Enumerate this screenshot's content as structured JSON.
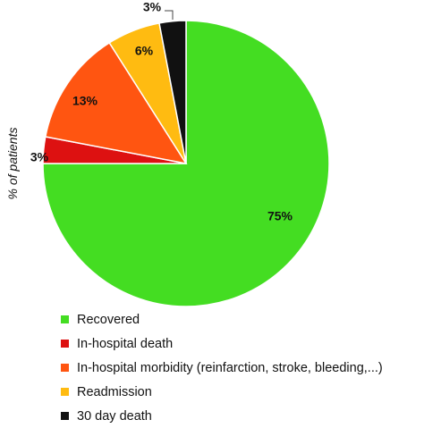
{
  "chart_data": {
    "type": "pie",
    "ylabel": "% of patients",
    "slices": [
      {
        "label": "Recovered",
        "value": 75,
        "display": "75%",
        "color": "#44dd22"
      },
      {
        "label": "In-hospital death",
        "value": 3,
        "display": "3%",
        "color": "#dd1111"
      },
      {
        "label": "In-hospital morbidity (reinfarction, stroke, bleeding,...)",
        "value": 13,
        "display": "13%",
        "color": "#ff5511"
      },
      {
        "label": "Readmission",
        "value": 6,
        "display": "6%",
        "color": "#ffbb11"
      },
      {
        "label": "30 day death",
        "value": 3,
        "display": "3%",
        "color": "#111111"
      }
    ],
    "legend_position": "bottom-left"
  }
}
